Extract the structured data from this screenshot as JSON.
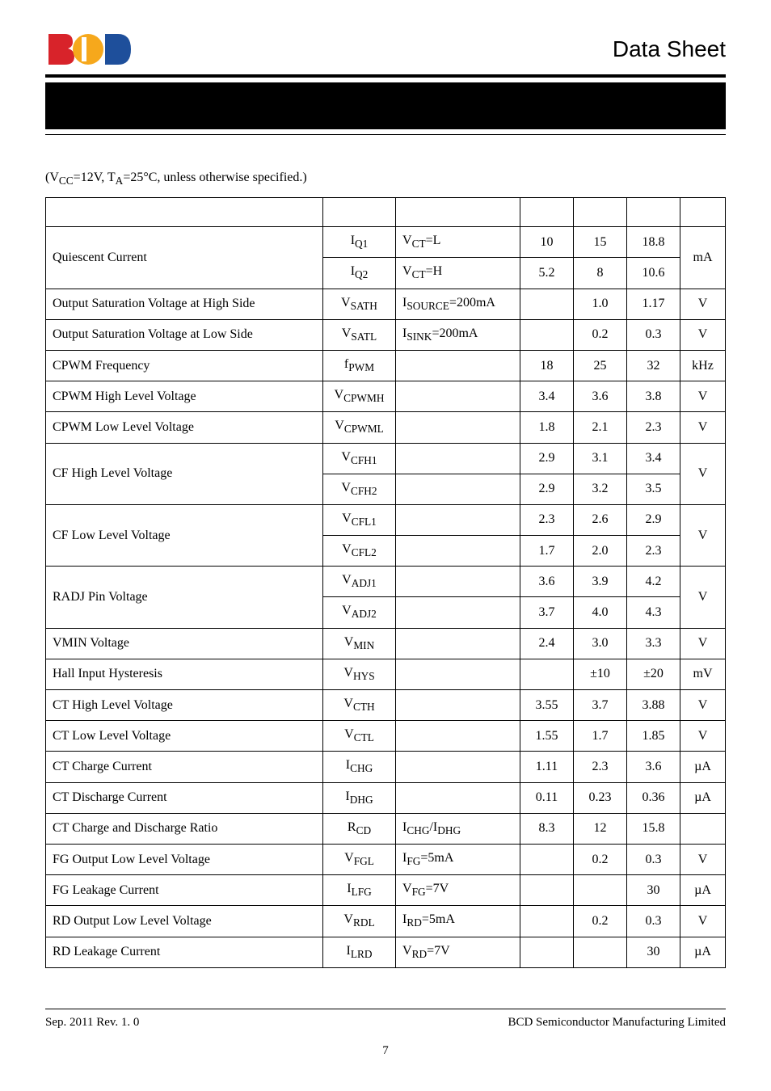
{
  "header": {
    "title_right": "Data Sheet"
  },
  "logo_colors": {
    "red": "#d8232a",
    "yellow": "#f6a81c",
    "blue": "#1e4f9b"
  },
  "conditions_html": "(V<sub>CC</sub>=12V, T<sub>A</sub>=25°C, unless otherwise specified.)",
  "table": {
    "rows": [
      {
        "param": "Quiescent Current",
        "rowspan_param": 2,
        "sym_html": "I<sub>Q1</sub>",
        "cond_html": "V<sub>CT</sub>=L",
        "min": "10",
        "typ": "15",
        "max": "18.8",
        "unit": "mA",
        "rowspan_unit": 2
      },
      {
        "sym_html": "I<sub>Q2</sub>",
        "cond_html": "V<sub>CT</sub>=H",
        "min": "5.2",
        "typ": "8",
        "max": "10.6"
      },
      {
        "param": "Output Saturation Voltage at High Side",
        "sym_html": "V<sub>SATH</sub>",
        "cond_html": "I<sub>SOURCE</sub>=200mA",
        "min": "",
        "typ": "1.0",
        "max": "1.17",
        "unit": "V"
      },
      {
        "param": "Output Saturation Voltage at Low Side",
        "sym_html": "V<sub>SATL</sub>",
        "cond_html": "I<sub>SINK</sub>=200mA",
        "min": "",
        "typ": "0.2",
        "max": "0.3",
        "unit": "V"
      },
      {
        "param": "CPWM Frequency",
        "sym_html": "f<sub>PWM</sub>",
        "cond_html": "",
        "min": "18",
        "typ": "25",
        "max": "32",
        "unit": "kHz"
      },
      {
        "param": "CPWM High Level Voltage",
        "sym_html": "V<sub>CPWMH</sub>",
        "cond_html": "",
        "min": "3.4",
        "typ": "3.6",
        "max": "3.8",
        "unit": "V"
      },
      {
        "param": "CPWM Low Level Voltage",
        "sym_html": "V<sub>CPWML</sub>",
        "cond_html": "",
        "min": "1.8",
        "typ": "2.1",
        "max": "2.3",
        "unit": "V"
      },
      {
        "param": "CF High Level Voltage",
        "rowspan_param": 2,
        "sym_html": "V<sub>CFH1</sub>",
        "cond_html": "",
        "min": "2.9",
        "typ": "3.1",
        "max": "3.4",
        "unit": "V",
        "rowspan_unit": 2
      },
      {
        "sym_html": "V<sub>CFH2</sub>",
        "cond_html": "",
        "min": "2.9",
        "typ": "3.2",
        "max": "3.5"
      },
      {
        "param": "CF Low Level Voltage",
        "rowspan_param": 2,
        "sym_html": "V<sub>CFL1</sub>",
        "cond_html": "",
        "min": "2.3",
        "typ": "2.6",
        "max": "2.9",
        "unit": "V",
        "rowspan_unit": 2
      },
      {
        "sym_html": "V<sub>CFL2</sub>",
        "cond_html": "",
        "min": "1.7",
        "typ": "2.0",
        "max": "2.3"
      },
      {
        "param": "RADJ Pin Voltage",
        "rowspan_param": 2,
        "sym_html": "V<sub>ADJ1</sub>",
        "cond_html": "",
        "min": "3.6",
        "typ": "3.9",
        "max": "4.2",
        "unit": "V",
        "rowspan_unit": 2
      },
      {
        "sym_html": "V<sub>ADJ2</sub>",
        "cond_html": "",
        "min": "3.7",
        "typ": "4.0",
        "max": "4.3"
      },
      {
        "param": "VMIN Voltage",
        "sym_html": "V<sub>MIN</sub>",
        "cond_html": "",
        "min": "2.4",
        "typ": "3.0",
        "max": "3.3",
        "unit": "V"
      },
      {
        "param": "Hall Input Hysteresis",
        "sym_html": "V<sub>HYS</sub>",
        "cond_html": "",
        "min": "",
        "typ": "±10",
        "max": "±20",
        "unit": "mV"
      },
      {
        "param": "CT High Level Voltage",
        "sym_html": "V<sub>CTH</sub>",
        "cond_html": "",
        "min": "3.55",
        "typ": "3.7",
        "max": "3.88",
        "unit": "V"
      },
      {
        "param": "CT Low Level Voltage",
        "sym_html": "V<sub>CTL</sub>",
        "cond_html": "",
        "min": "1.55",
        "typ": "1.7",
        "max": "1.85",
        "unit": "V"
      },
      {
        "param": "CT Charge Current",
        "sym_html": "I<sub>CHG</sub>",
        "cond_html": "",
        "min": "1.11",
        "typ": "2.3",
        "max": "3.6",
        "unit": "µA"
      },
      {
        "param": "CT Discharge Current",
        "sym_html": "I<sub>DHG</sub>",
        "cond_html": "",
        "min": "0.11",
        "typ": "0.23",
        "max": "0.36",
        "unit": "µA"
      },
      {
        "param": "CT Charge and Discharge Ratio",
        "sym_html": "R<sub>CD</sub>",
        "cond_html": "I<sub>CHG</sub>/I<sub>DHG</sub>",
        "min": "8.3",
        "typ": "12",
        "max": "15.8",
        "unit": ""
      },
      {
        "param": "FG Output Low Level Voltage",
        "sym_html": "V<sub>FGL</sub>",
        "cond_html": "I<sub>FG</sub>=5mA",
        "min": "",
        "typ": "0.2",
        "max": "0.3",
        "unit": "V"
      },
      {
        "param": "FG Leakage Current",
        "sym_html": "I<sub>LFG</sub>",
        "cond_html": "V<sub>FG</sub>=7V",
        "min": "",
        "typ": "",
        "max": "30",
        "unit": "µA"
      },
      {
        "param": "RD Output Low Level Voltage",
        "sym_html": "V<sub>RDL</sub>",
        "cond_html": "I<sub>RD</sub>=5mA",
        "min": "",
        "typ": "0.2",
        "max": "0.3",
        "unit": "V"
      },
      {
        "param": "RD Leakage Current",
        "sym_html": "I<sub>LRD</sub>",
        "cond_html": "V<sub>RD</sub>=7V",
        "min": "",
        "typ": "",
        "max": "30",
        "unit": "µA"
      }
    ]
  },
  "footer": {
    "left": "Sep. 2011    Rev. 1. 0",
    "right": "BCD Semiconductor Manufacturing Limited",
    "page": "7"
  }
}
